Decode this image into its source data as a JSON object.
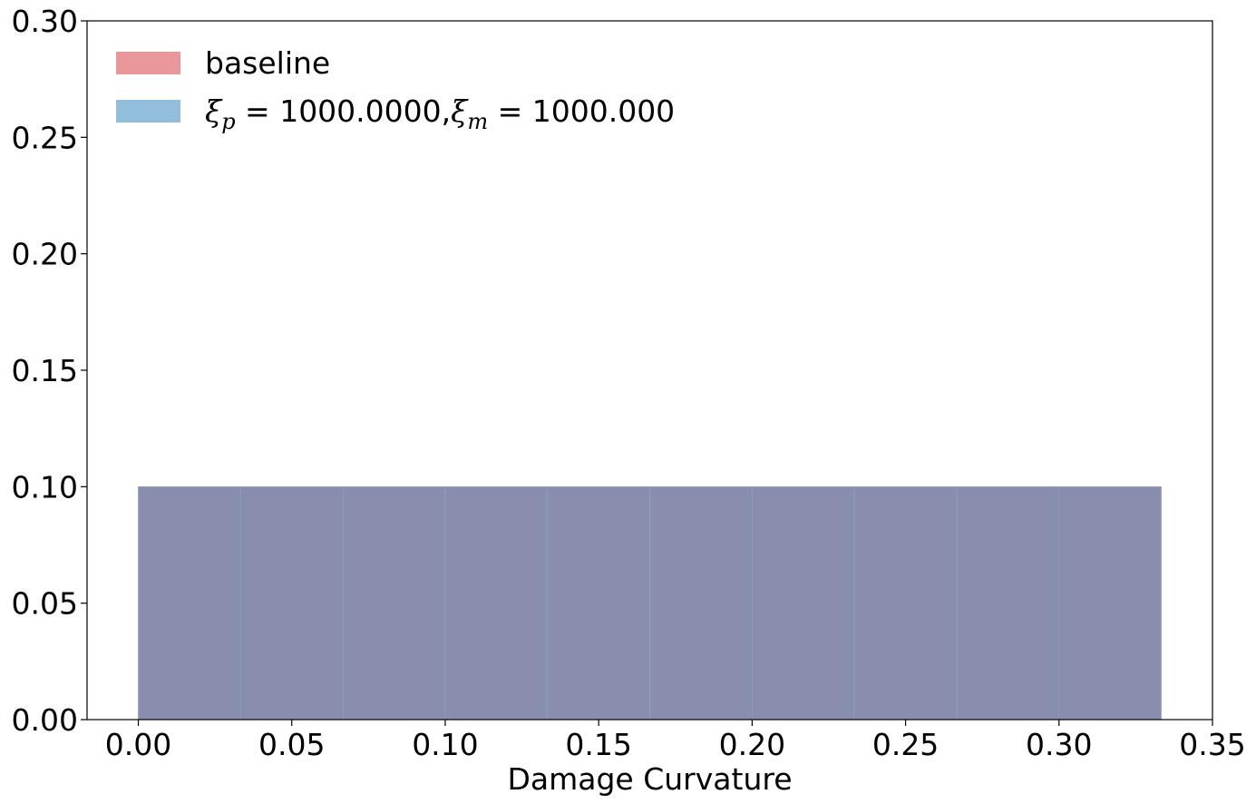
{
  "chart_data": {
    "type": "bar",
    "xlabel": "Damage Curvature",
    "ylabel": "",
    "xlim": [
      -0.0167,
      0.35
    ],
    "ylim": [
      0,
      0.3
    ],
    "x_ticks": [
      "0.00",
      "0.05",
      "0.10",
      "0.15",
      "0.20",
      "0.25",
      "0.30",
      "0.35"
    ],
    "x_tick_values": [
      0,
      0.05,
      0.1,
      0.15,
      0.2,
      0.25,
      0.3,
      0.35
    ],
    "y_ticks": [
      "0.00",
      "0.05",
      "0.10",
      "0.15",
      "0.20",
      "0.25",
      "0.30"
    ],
    "y_tick_values": [
      0,
      0.05,
      0.1,
      0.15,
      0.2,
      0.25,
      0.3
    ],
    "bin_edges": [
      0,
      0.0333,
      0.0667,
      0.1,
      0.1333,
      0.1667,
      0.2,
      0.2333,
      0.2667,
      0.3,
      0.3333
    ],
    "legend_position": "upper-left",
    "series": [
      {
        "name": "baseline",
        "color": "#e06c6e",
        "values": [
          0.1,
          0.1,
          0.1,
          0.1,
          0.1,
          0.1,
          0.1,
          0.1,
          0.1,
          0.1
        ]
      },
      {
        "name": "ξp = 1000.0000,ξm = 1000.000",
        "color": "#3a86c0",
        "values": [
          0.1,
          0.1,
          0.1,
          0.1,
          0.1,
          0.1,
          0.1,
          0.1,
          0.1,
          0.1
        ]
      }
    ],
    "grid": false
  }
}
